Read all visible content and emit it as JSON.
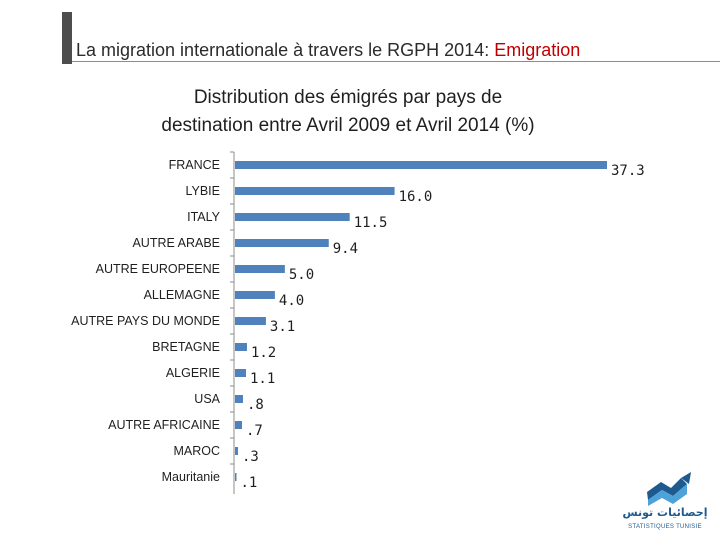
{
  "header": {
    "title_main": "La migration internationale à travers le RGPH 2014: ",
    "title_accent": "Emigration",
    "accent_color": "#c00000"
  },
  "chart_data": {
    "type": "bar",
    "orientation": "horizontal",
    "title_line1": "Distribution des émigrés par pays de",
    "title_line2": "destination entre  Avril 2009 et Avril 2014 (%)",
    "categories": [
      "FRANCE",
      "LYBIE",
      "ITALY",
      "AUTRE  ARABE",
      "AUTRE EUROPEENE",
      "ALLEMAGNE",
      "AUTRE PAYS DU MONDE",
      "BRETAGNE",
      "ALGERIE",
      "USA",
      "AUTRE AFRICAINE",
      "MAROC",
      "Mauritanie"
    ],
    "values": [
      37.3,
      16.0,
      11.5,
      9.4,
      5.0,
      4.0,
      3.1,
      1.2,
      1.1,
      0.8,
      0.7,
      0.3,
      0.1
    ],
    "value_labels": [
      "37.3",
      "16.0",
      "11.5",
      "9.4",
      "5.0",
      "4.0",
      "3.1",
      "1.2",
      "1.1",
      ".8",
      ".7",
      ".3",
      ".1"
    ],
    "bar_color": "#4f81bd",
    "axis_color": "#8c8c8c",
    "xlim": [
      0,
      37.3
    ],
    "grid": false,
    "legend": "none"
  },
  "logo": {
    "arabic_text": "إحصائيات تونس",
    "latin_text": "STATISTIQUES TUNISIE",
    "icon": "chart-arrow-logo-icon"
  }
}
